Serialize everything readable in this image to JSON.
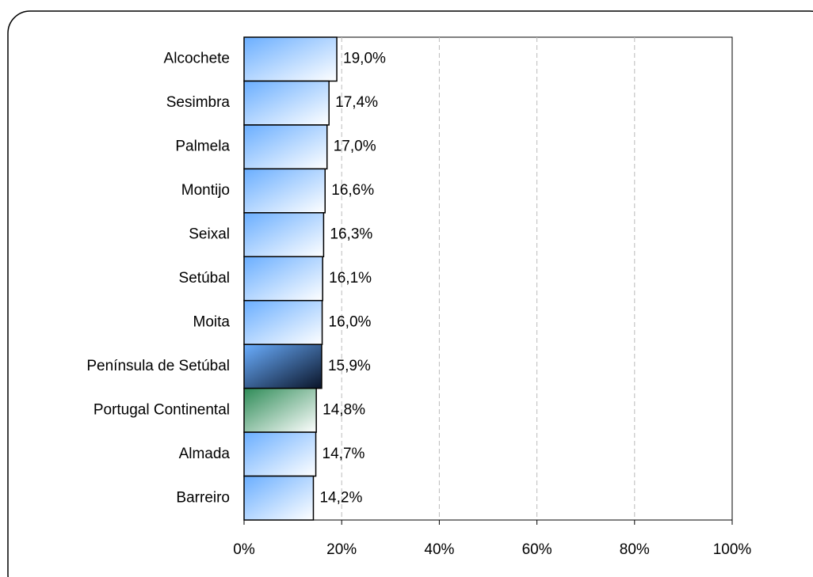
{
  "chart_data": {
    "type": "barh",
    "categories": [
      "Alcochete",
      "Sesimbra",
      "Palmela",
      "Montijo",
      "Seixal",
      "Setúbal",
      "Moita",
      "Península de Setúbal",
      "Portugal Continental",
      "Almada",
      "Barreiro"
    ],
    "values": [
      19.0,
      17.4,
      17.0,
      16.6,
      16.3,
      16.1,
      16.0,
      15.9,
      14.8,
      14.7,
      14.2
    ],
    "value_labels": [
      "19,0%",
      "17,4%",
      "17,0%",
      "16,6%",
      "16,3%",
      "16,1%",
      "16,0%",
      "15,9%",
      "14,8%",
      "14,7%",
      "14,2%"
    ],
    "colors": [
      "#6aaeff",
      "#6aaeff",
      "#6aaeff",
      "#6aaeff",
      "#6aaeff",
      "#6aaeff",
      "#6aaeff",
      "#6aaeff",
      "#2e8b57",
      "#6aaeff",
      "#6aaeff"
    ],
    "gradient_ends": [
      "#ffffff",
      "#ffffff",
      "#ffffff",
      "#ffffff",
      "#ffffff",
      "#ffffff",
      "#ffffff",
      "#0a1428",
      "#ffffff",
      "#ffffff",
      "#ffffff"
    ],
    "label_colors": [
      "#333399",
      "#333399",
      "#333399",
      "#333399",
      "#333399",
      "#333399",
      "#333399",
      "#333399",
      "#339966",
      "#333399",
      "#333399"
    ],
    "xlim": [
      0,
      100
    ],
    "xticks": [
      {
        "value": 0,
        "label": "0%"
      },
      {
        "value": 20,
        "label": "20%"
      },
      {
        "value": 40,
        "label": "40%"
      },
      {
        "value": 60,
        "label": "60%"
      },
      {
        "value": 80,
        "label": "80%"
      },
      {
        "value": 100,
        "label": "100%"
      }
    ],
    "grid": true
  }
}
